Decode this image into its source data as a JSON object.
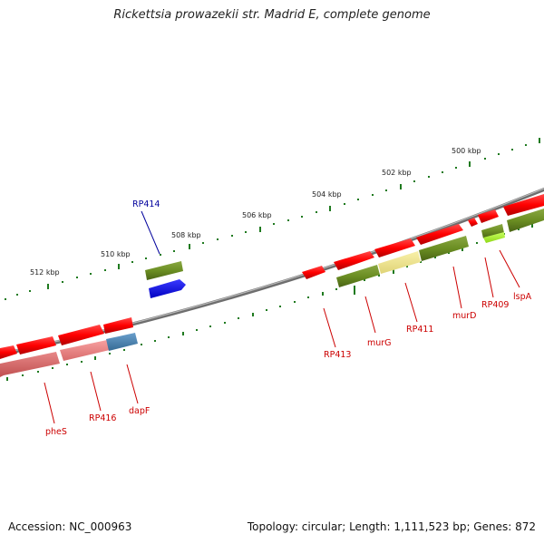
{
  "title": "Rickettsia prowazekii str. Madrid E, complete genome",
  "accession_label": "Accession: NC_000963",
  "summary_label": "Topology: circular; Length: 1,111,523 bp; Genes: 872",
  "scale_labels": [
    "500 kbp",
    "502 kbp",
    "504 kbp",
    "506 kbp",
    "508 kbp",
    "510 kbp",
    "512 kbp"
  ],
  "gene_labels": [
    {
      "text": "RP414",
      "color": "#00009c"
    },
    {
      "text": "RP413",
      "color": "#cc0000"
    },
    {
      "text": "murG",
      "color": "#cc0000"
    },
    {
      "text": "RP411",
      "color": "#cc0000"
    },
    {
      "text": "murD",
      "color": "#cc0000"
    },
    {
      "text": "RP409",
      "color": "#cc0000"
    },
    {
      "text": "lspA",
      "color": "#cc0000"
    },
    {
      "text": "pheS",
      "color": "#cc0000"
    },
    {
      "text": "RP416",
      "color": "#cc0000"
    },
    {
      "text": "dapF",
      "color": "#cc0000"
    }
  ],
  "colors": {
    "forward_cds": "#ff0000",
    "reverse_cds": "#6b8e23",
    "light_green": "#adff2f",
    "blue_cds": "#0000ff",
    "pale_yellow": "#f0e68c",
    "pink": "#f08080",
    "steel_blue": "#4682b4",
    "tick_green": "#1f7a1f",
    "backbone": "#808080"
  }
}
